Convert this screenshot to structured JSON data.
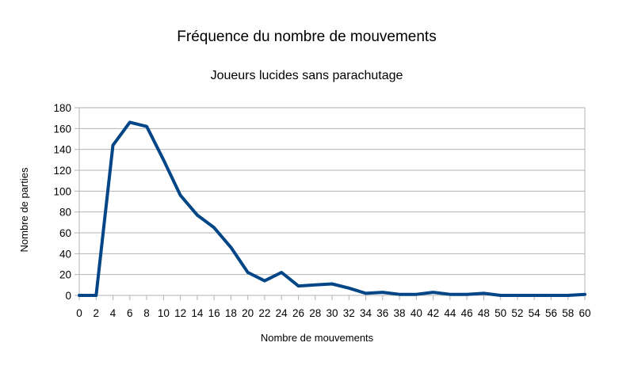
{
  "chart_data": {
    "type": "line",
    "title": "Fréquence du nombre de mouvements",
    "subtitle": "Joueurs lucides sans parachutage",
    "xlabel": "Nombre de mouvements",
    "ylabel": "Nombre de parties",
    "xlim": [
      0,
      60
    ],
    "ylim": [
      0,
      180
    ],
    "x_ticks": [
      0,
      2,
      4,
      6,
      8,
      10,
      12,
      14,
      16,
      18,
      20,
      22,
      24,
      26,
      28,
      30,
      32,
      34,
      36,
      38,
      40,
      42,
      44,
      46,
      48,
      50,
      52,
      54,
      56,
      58,
      60
    ],
    "y_ticks": [
      0,
      20,
      40,
      60,
      80,
      100,
      120,
      140,
      160,
      180
    ],
    "grid": "horizontal",
    "legend": "none",
    "line_color": "#004586",
    "series": [
      {
        "x": [
          0,
          2,
          4,
          6,
          8,
          10,
          12,
          14,
          16,
          18,
          20,
          22,
          24,
          26,
          28,
          30,
          32,
          34,
          36,
          38,
          40,
          42,
          44,
          46,
          48,
          50,
          52,
          54,
          56,
          58,
          60
        ],
        "values": [
          0,
          0,
          144,
          166,
          162,
          130,
          96,
          77,
          65,
          46,
          22,
          14,
          22,
          9,
          10,
          11,
          7,
          2,
          3,
          1,
          1,
          3,
          1,
          1,
          2,
          0,
          0,
          0,
          0,
          0,
          1
        ]
      }
    ]
  }
}
